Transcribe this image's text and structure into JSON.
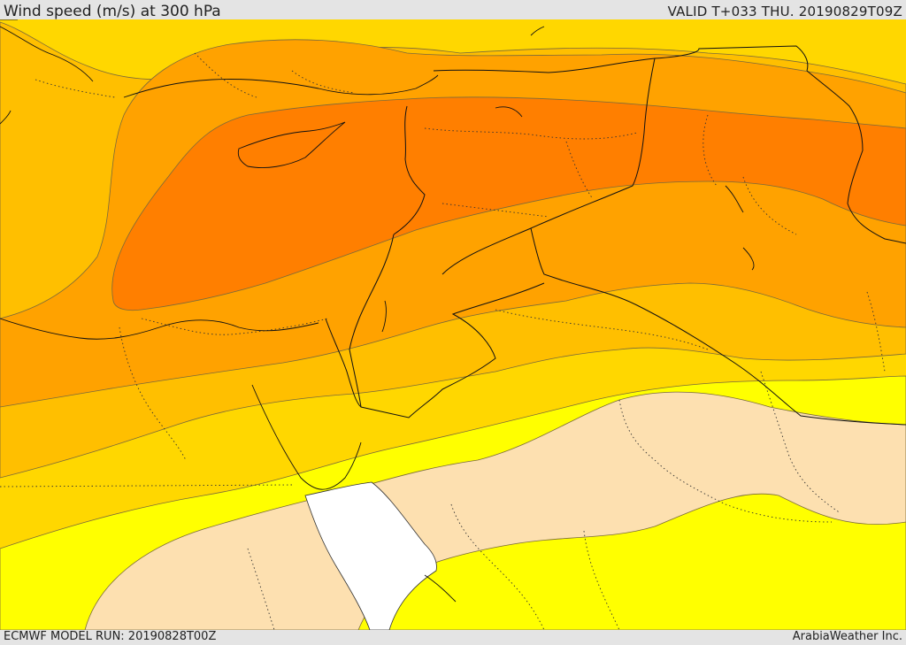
{
  "header": {
    "title": "Wind speed (m/s) at 300 hPa",
    "valid": "VALID T+033 THU. 20190829T09Z"
  },
  "footer": {
    "model_run": "ECMWF MODEL RUN: 20190828T00Z",
    "credit": "ArabiaWeather Inc."
  },
  "colors": {
    "band_lt10": "#fde0b0",
    "band_10_20": "#ffff00",
    "band_20_30": "#ffd700",
    "band_30_40": "#ffbf00",
    "band_40_50": "#ffa200",
    "band_50_60": "#ff7f00",
    "sea_gap": "#ffffff"
  }
}
